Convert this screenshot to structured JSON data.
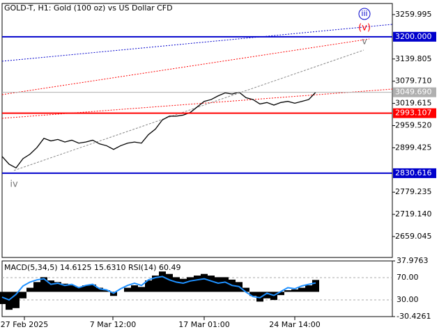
{
  "chart_data": [
    {
      "type": "line",
      "title": "GOLD-T, H1:  Gold (100 oz) vs US Dollar CFD",
      "xlim": [
        0,
        56
      ],
      "xticks": [
        {
          "value": 3.2,
          "label": "27 Feb 2025"
        },
        {
          "value": 15.9,
          "label": "7 Mar 12:00"
        },
        {
          "value": 29,
          "label": "17 Mar 01:00"
        },
        {
          "value": 42,
          "label": "24 Mar 14:00"
        }
      ],
      "ylim": [
        2602.5,
        3290.1
      ],
      "yticks": [
        3259.995,
        3139.805,
        {
          "value": 3079.71,
          "label": "3079.710"
        },
        3019.615,
        {
          "value": 2959.52,
          "label": "2959.520"
        },
        2899.425,
        2779.235,
        {
          "value": 2719.14,
          "label": "2719.140"
        },
        2659.045
      ],
      "levels": [
        {
          "value": 3200,
          "label": "3200.000",
          "color": "#0000cc"
        },
        {
          "value": 3049.69,
          "label": "3049.690",
          "color": "#b0b0b0"
        },
        {
          "value": 2993.107,
          "label": "2993.107",
          "color": "#ff0000"
        },
        {
          "value": 2830.616,
          "label": "2830.616",
          "color": "#0000cc"
        }
      ],
      "annotations": [
        "iii",
        "(v)",
        "v",
        "iv"
      ],
      "series": [
        {
          "name": "GOLD-T",
          "color": "#000000",
          "values": [
            2876,
            2855,
            2845,
            2870,
            2882,
            2900,
            2925,
            2918,
            2922,
            2915,
            2920,
            2912,
            2915,
            2920,
            2910,
            2905,
            2895,
            2905,
            2912,
            2915,
            2912,
            2935,
            2950,
            2975,
            2985,
            2985,
            2988,
            2995,
            3010,
            3025,
            3030,
            3040,
            3048,
            3045,
            3050,
            3035,
            3030,
            3018,
            3022,
            3015,
            3022,
            3025,
            3020,
            3025,
            3030,
            3049.69
          ]
        }
      ]
    },
    {
      "type": "bar",
      "title": "MACD(5,34,5) 14.6125 15.6310 RSI(14) 60.49",
      "xlim": [
        0,
        56
      ],
      "ylim": [
        -30.4261,
        37.9763
      ],
      "yticks": [
        37.9763,
        -30.4261
      ],
      "y2lim": [
        0,
        100
      ],
      "y2ticks": [
        {
          "value": 70,
          "label": "70.00"
        },
        {
          "value": 30,
          "label": "30.00"
        }
      ],
      "series": [
        {
          "name": "MACD",
          "color": "#000000",
          "values": [
            -15,
            -22,
            -20,
            -8,
            5,
            12,
            18,
            14,
            12,
            10,
            8,
            6,
            8,
            9,
            5,
            2,
            -5,
            0,
            5,
            8,
            6,
            14,
            20,
            25,
            22,
            18,
            16,
            18,
            20,
            22,
            20,
            18,
            18,
            15,
            12,
            5,
            -5,
            -12,
            -8,
            -10,
            -4,
            2,
            3,
            5,
            8,
            14.6125
          ]
        },
        {
          "name": "RSI",
          "color": "#1e90ff",
          "axis": "y2",
          "values": [
            35,
            30,
            40,
            55,
            62,
            66,
            68,
            58,
            60,
            56,
            58,
            52,
            56,
            58,
            50,
            48,
            42,
            50,
            56,
            60,
            56,
            66,
            70,
            72,
            66,
            62,
            60,
            64,
            66,
            68,
            64,
            60,
            62,
            56,
            54,
            44,
            36,
            34,
            42,
            38,
            45,
            52,
            50,
            55,
            58,
            60.49
          ]
        }
      ]
    }
  ]
}
